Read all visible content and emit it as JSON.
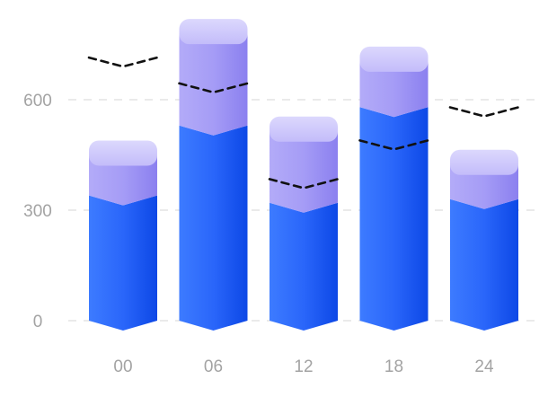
{
  "chart_data": {
    "type": "bar",
    "stacked": true,
    "style": "3d-column",
    "categories": [
      "00",
      "06",
      "12",
      "18",
      "24"
    ],
    "series": [
      {
        "values": [
          340,
          530,
          320,
          580,
          330
        ],
        "color": "#2f6dfb"
      },
      {
        "values": [
          115,
          255,
          200,
          130,
          100
        ],
        "color": "#a79ef6"
      }
    ],
    "target_line": {
      "values": [
        690,
        620,
        360,
        465,
        555
      ],
      "style": "dashed",
      "color": "#111111"
    },
    "yticks": [
      0,
      300,
      600
    ],
    "ylim": [
      0,
      850
    ],
    "grid": true,
    "title": "",
    "xlabel": "",
    "ylabel": ""
  }
}
